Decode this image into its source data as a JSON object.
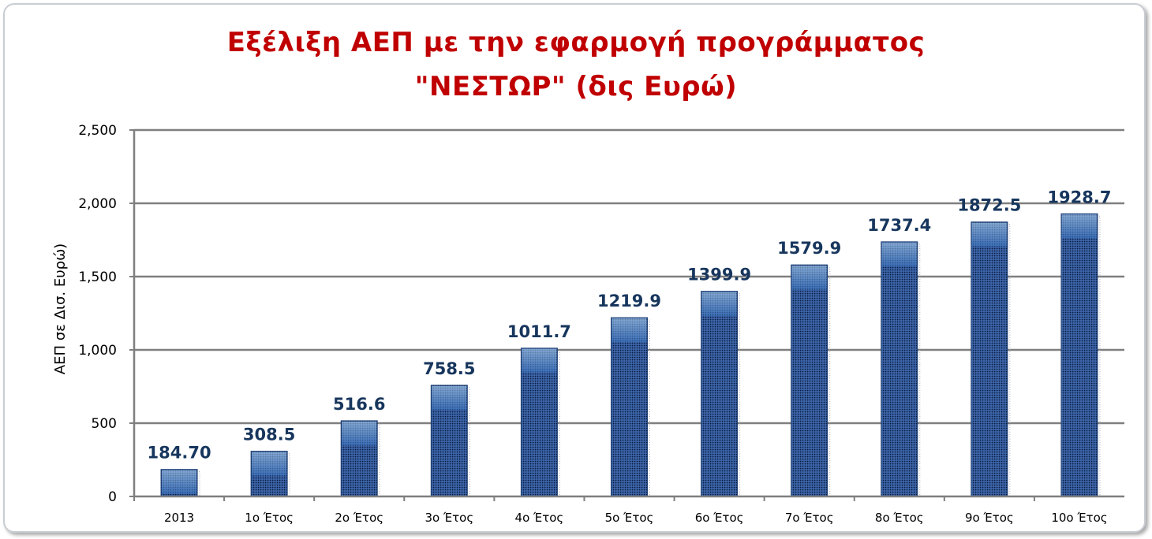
{
  "chart_data": {
    "type": "bar",
    "title_line1": "Εξέλιξη ΑΕΠ με την εφαρμογή προγράμματος",
    "title_line2": "\"ΝΕΣΤΩΡ\" (δις Ευρώ)",
    "ylabel": "ΑΕΠ σε Δισ. Ευρώ)",
    "xlabel": "",
    "categories": [
      "2013",
      "1ο Έτος",
      "2ο Έτος",
      "3ο Έτος",
      "4ο Έτος",
      "5ο Έτος",
      "6ο Έτος",
      "7ο Έτος",
      "8ο Έτος",
      "9ο Έτος",
      "10ο Έτος"
    ],
    "values": [
      184.7,
      308.5,
      516.6,
      758.5,
      1011.7,
      1219.9,
      1399.9,
      1579.9,
      1737.4,
      1872.5,
      1928.7
    ],
    "value_labels": [
      "184.70",
      "308.5",
      "516.6",
      "758.5",
      "1011.7",
      "1219.9",
      "1399.9",
      "1579.9",
      "1737.4",
      "1872.5",
      "1928.7"
    ],
    "ylim": [
      0,
      2500
    ],
    "yticks": [
      0,
      500,
      1000,
      1500,
      2000,
      2500
    ],
    "ytick_labels": [
      "0",
      "500",
      "1,000",
      "1,500",
      "2,000",
      "2,500"
    ],
    "grid": true,
    "legend": "none",
    "bar_color": "#2e5597",
    "bar_top_color": "#8fc0ea",
    "title_color": "#c00000",
    "data_label_color": "#17365d"
  }
}
